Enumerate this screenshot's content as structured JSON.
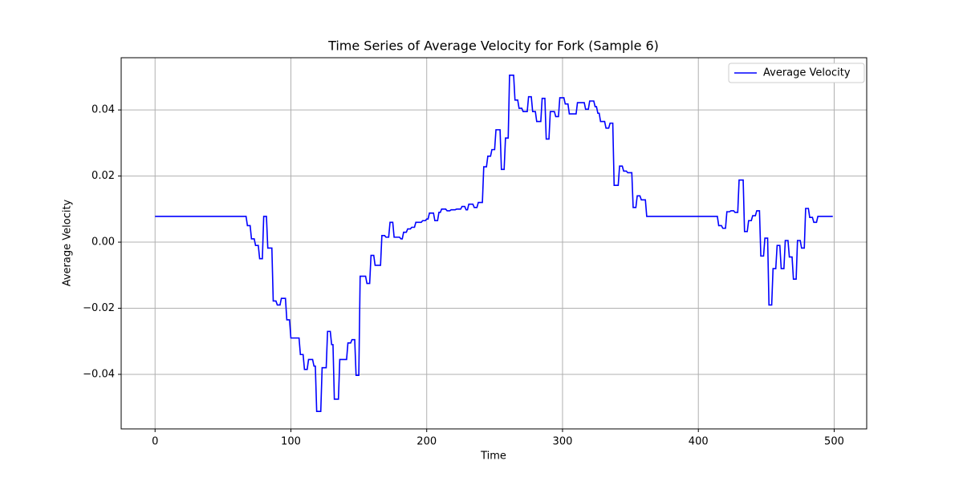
{
  "chart_data": {
    "type": "line",
    "title": "Time Series of Average Velocity for Fork (Sample 6)",
    "xlabel": "Time",
    "ylabel": "Average Velocity",
    "xlim": [
      -24.95,
      523.95
    ],
    "ylim": [
      -0.0565,
      0.0558
    ],
    "xticks": [
      0,
      100,
      200,
      300,
      400,
      500
    ],
    "yticks": [
      {
        "value": -0.04,
        "label": "−0.04"
      },
      {
        "value": -0.02,
        "label": "−0.02"
      },
      {
        "value": 0,
        "label": "0.00"
      },
      {
        "value": 0.02,
        "label": "0.02"
      },
      {
        "value": 0.04,
        "label": "0.04"
      }
    ],
    "grid": true,
    "legend": "upper right",
    "x": [
      0,
      67,
      68,
      70,
      71,
      73,
      74,
      76,
      77,
      79,
      80,
      82,
      83,
      86,
      87,
      89,
      90,
      92,
      93,
      96,
      97,
      99,
      100,
      106,
      107,
      109,
      110,
      112,
      113,
      116,
      117,
      118,
      119,
      122,
      123,
      126,
      127,
      129,
      130,
      131,
      132,
      135,
      136,
      141,
      142,
      144,
      145,
      147,
      148,
      150,
      151,
      155,
      156,
      158,
      159,
      161,
      162,
      166,
      167,
      169,
      170,
      172,
      173,
      175,
      176,
      180,
      181,
      182,
      183,
      185,
      186,
      188,
      189,
      191,
      192,
      196,
      197,
      199,
      200,
      201,
      202,
      205,
      206,
      208,
      209,
      210,
      211,
      214,
      215,
      217,
      218,
      221,
      222,
      225,
      226,
      228,
      229,
      230,
      231,
      234,
      235,
      237,
      238,
      241,
      242,
      244,
      245,
      247,
      248,
      250,
      251,
      254,
      255,
      257,
      258,
      260,
      261,
      264,
      265,
      267,
      268,
      270,
      271,
      274,
      275,
      277,
      278,
      280,
      281,
      284,
      285,
      287,
      288,
      290,
      291,
      294,
      295,
      297,
      298,
      301,
      302,
      304,
      305,
      310,
      311,
      316,
      317,
      319,
      320,
      323,
      324,
      325,
      326,
      327,
      328,
      331,
      332,
      334,
      335,
      337,
      338,
      341,
      342,
      344,
      345,
      347,
      348,
      351,
      352,
      354,
      355,
      357,
      358,
      361,
      362,
      414,
      415,
      417,
      418,
      420,
      421,
      423,
      424,
      426,
      427,
      429,
      430,
      433,
      434,
      436,
      437,
      439,
      440,
      442,
      443,
      445,
      446,
      448,
      449,
      451,
      452,
      454,
      455,
      457,
      458,
      460,
      461,
      463,
      464,
      466,
      467,
      469,
      470,
      472,
      473,
      475,
      476,
      478,
      479,
      481,
      482,
      484,
      485,
      487,
      488,
      499
    ],
    "series": [
      {
        "name": "Average Velocity",
        "color": "#0000ff",
        "values": [
          0.0078,
          0.0078,
          0.005,
          0.005,
          0.001,
          0.001,
          -0.001,
          -0.001,
          -0.005,
          -0.005,
          0.0078,
          0.0078,
          -0.0018,
          -0.0018,
          -0.0178,
          -0.0178,
          -0.019,
          -0.019,
          -0.017,
          -0.017,
          -0.0235,
          -0.0235,
          -0.029,
          -0.029,
          -0.034,
          -0.034,
          -0.0385,
          -0.0385,
          -0.0355,
          -0.0355,
          -0.0375,
          -0.0375,
          -0.0512,
          -0.0512,
          -0.038,
          -0.038,
          -0.027,
          -0.027,
          -0.031,
          -0.031,
          -0.0475,
          -0.0475,
          -0.0355,
          -0.0355,
          -0.0305,
          -0.0305,
          -0.0295,
          -0.0295,
          -0.0403,
          -0.0403,
          -0.0103,
          -0.0103,
          -0.0125,
          -0.0125,
          -0.004,
          -0.004,
          -0.007,
          -0.007,
          0.002,
          0.002,
          0.0015,
          0.0015,
          0.006,
          0.006,
          0.0015,
          0.0015,
          0.001,
          0.001,
          0.003,
          0.003,
          0.004,
          0.004,
          0.0045,
          0.0045,
          0.006,
          0.006,
          0.0065,
          0.0065,
          0.007,
          0.007,
          0.0088,
          0.0088,
          0.0065,
          0.0065,
          0.009,
          0.009,
          0.01,
          0.01,
          0.0095,
          0.0095,
          0.0098,
          0.0098,
          0.01,
          0.01,
          0.0108,
          0.0108,
          0.0098,
          0.0098,
          0.0115,
          0.0115,
          0.0105,
          0.0105,
          0.012,
          0.012,
          0.0228,
          0.0228,
          0.026,
          0.026,
          0.028,
          0.028,
          0.034,
          0.034,
          0.022,
          0.022,
          0.0315,
          0.0315,
          0.0505,
          0.0505,
          0.043,
          0.043,
          0.0405,
          0.0405,
          0.0395,
          0.0395,
          0.044,
          0.044,
          0.0395,
          0.0395,
          0.0365,
          0.0365,
          0.0435,
          0.0435,
          0.0312,
          0.0312,
          0.0395,
          0.0395,
          0.038,
          0.038,
          0.0437,
          0.0437,
          0.0418,
          0.0418,
          0.0388,
          0.0388,
          0.0422,
          0.0422,
          0.0402,
          0.0402,
          0.0427,
          0.0427,
          0.041,
          0.041,
          0.039,
          0.039,
          0.0365,
          0.0365,
          0.0345,
          0.0345,
          0.036,
          0.036,
          0.0172,
          0.0172,
          0.023,
          0.023,
          0.0215,
          0.0215,
          0.021,
          0.021,
          0.0105,
          0.0105,
          0.014,
          0.014,
          0.0128,
          0.0128,
          0.0078,
          0.0078,
          0.005,
          0.005,
          0.0042,
          0.0042,
          0.0092,
          0.0092,
          0.0095,
          0.0095,
          0.009,
          0.009,
          0.0188,
          0.0188,
          0.0032,
          0.0032,
          0.0065,
          0.0065,
          0.008,
          0.008,
          0.0095,
          0.0095,
          -0.0042,
          -0.0042,
          0.0012,
          0.0012,
          -0.019,
          -0.019,
          -0.008,
          -0.008,
          -0.001,
          -0.001,
          -0.008,
          -0.008,
          0.0005,
          0.0005,
          -0.0045,
          -0.0045,
          -0.0112,
          -0.0112,
          0.0005,
          0.0005,
          -0.0018,
          -0.0018,
          0.0102,
          0.0102,
          0.0075,
          0.0075,
          0.006,
          0.006,
          0.0078,
          0.0078
        ]
      }
    ]
  }
}
